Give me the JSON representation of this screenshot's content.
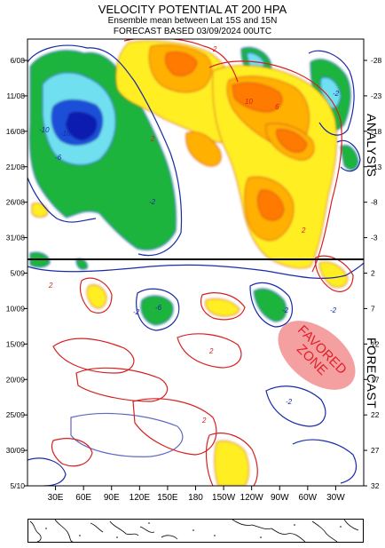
{
  "header": {
    "title": "VELOCITY POTENTIAL AT 200 HPA",
    "subtitle": "Ensemble mean between  Lat 15S and 15N",
    "forecast_line": "FORECAST  BASED 03/09/2024 00UTC"
  },
  "chart_data": {
    "type": "heatmap",
    "title": "VELOCITY POTENTIAL AT 200 HPA",
    "subtitle": "Ensemble mean between  Lat 15S and 15N",
    "x_tick_labels": [
      "30E",
      "60E",
      "90E",
      "120E",
      "150E",
      "180",
      "150W",
      "120W",
      "90W",
      "60W",
      "30W"
    ],
    "x_ticks_deg_east": [
      30,
      60,
      90,
      120,
      150,
      180,
      210,
      240,
      270,
      300,
      330
    ],
    "x_range_deg_east": [
      0,
      360
    ],
    "y_left_tick_labels": [
      "6/08",
      "11/08",
      "16/08",
      "21/08",
      "26/08",
      "31/08",
      "5/09",
      "10/09",
      "15/09",
      "20/09",
      "25/09",
      "30/09",
      "5/10"
    ],
    "y_right_tick_labels": [
      "-28",
      "-23",
      "-18",
      "-13",
      "-8",
      "-3",
      "2",
      "7",
      "12",
      "17",
      "22",
      "27",
      "32"
    ],
    "y_axis_direction": "time increases downward",
    "analysis_forecast_divider": "3/09",
    "side_labels": {
      "analysis": "ANALYSIS",
      "forecast": "FORECAST"
    },
    "contour_labels": [
      "-2",
      "-6",
      "-10",
      "2",
      "6",
      "10"
    ],
    "annotation": {
      "text": "FAVORED ZONE",
      "color": "#f08080",
      "text_color": "#e0202a"
    },
    "colors": {
      "neg_contour": "#1a2aa8",
      "pos_contour": "#d62020",
      "neg_fill_1": "#1eb43c",
      "neg_fill_2": "#6fe0f0",
      "neg_fill_3": "#1a4fd8",
      "neg_fill_4": "#0a1ab0",
      "pos_fill_1": "#ffee22",
      "pos_fill_2": "#ffb000",
      "pos_fill_3": "#ff7a00"
    },
    "grid": false,
    "legend": "none"
  }
}
